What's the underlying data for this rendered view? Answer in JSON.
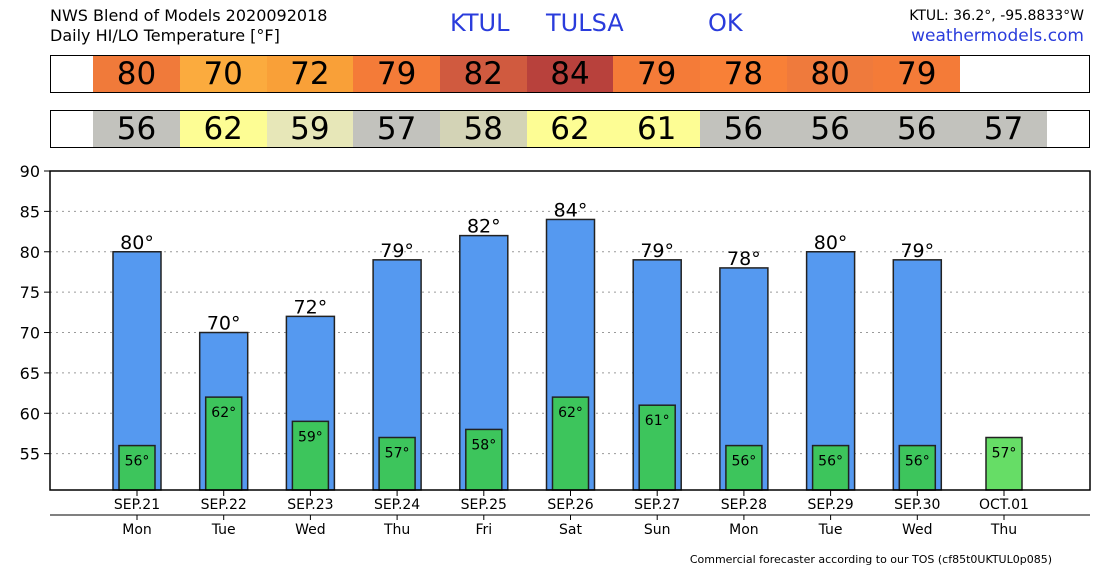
{
  "header": {
    "title_line1": "NWS Blend of Models 2020092018",
    "title_line2": "Daily HI/LO Temperature [°F]",
    "station_id": "KTUL",
    "station_city": "TULSA",
    "station_state": "OK",
    "coords": "KTUL: 36.2°, -95.8833°W",
    "site": "weathermodels.com"
  },
  "strips": {
    "hi": [
      {
        "value": "80",
        "color": "#f07a3a"
      },
      {
        "value": "70",
        "color": "#fbab3e"
      },
      {
        "value": "72",
        "color": "#f9a038"
      },
      {
        "value": "79",
        "color": "#f47b38"
      },
      {
        "value": "82",
        "color": "#d05a3f"
      },
      {
        "value": "84",
        "color": "#b8413c"
      },
      {
        "value": "79",
        "color": "#f47b38"
      },
      {
        "value": "78",
        "color": "#f88037"
      },
      {
        "value": "80",
        "color": "#ef7a3c"
      },
      {
        "value": "79",
        "color": "#f47b38"
      },
      {
        "value": "",
        "color": "#ffffff"
      }
    ],
    "lo": [
      {
        "value": "56",
        "color": "#c2c2bd"
      },
      {
        "value": "62",
        "color": "#fdfd94"
      },
      {
        "value": "59",
        "color": "#e7e7b8"
      },
      {
        "value": "57",
        "color": "#c2c2bd"
      },
      {
        "value": "58",
        "color": "#d3d3b6"
      },
      {
        "value": "62",
        "color": "#fdfd94"
      },
      {
        "value": "61",
        "color": "#fdfd94"
      },
      {
        "value": "56",
        "color": "#c2c2bd"
      },
      {
        "value": "56",
        "color": "#c2c2bd"
      },
      {
        "value": "56",
        "color": "#c2c2bd"
      },
      {
        "value": "57",
        "color": "#c2c2bd"
      }
    ]
  },
  "chart_data": {
    "type": "bar",
    "categories": [
      "SEP.21",
      "SEP.22",
      "SEP.23",
      "SEP.24",
      "SEP.25",
      "SEP.26",
      "SEP.27",
      "SEP.28",
      "SEP.29",
      "SEP.30",
      "OCT.01"
    ],
    "weekdays": [
      "Mon",
      "Tue",
      "Wed",
      "Thu",
      "Fri",
      "Sat",
      "Sun",
      "Mon",
      "Tue",
      "Wed",
      "Thu"
    ],
    "series": [
      {
        "values": [
          80,
          70,
          72,
          79,
          82,
          84,
          79,
          78,
          80,
          79,
          null
        ],
        "labels": [
          "80°",
          "70°",
          "72°",
          "79°",
          "82°",
          "84°",
          "79°",
          "78°",
          "80°",
          "79°",
          ""
        ],
        "color": "#5599f0"
      },
      {
        "values": [
          56,
          62,
          59,
          57,
          58,
          62,
          61,
          56,
          56,
          56,
          57
        ],
        "labels": [
          "56°",
          "62°",
          "59°",
          "57°",
          "58°",
          "62°",
          "61°",
          "56°",
          "56°",
          "56°",
          "57°"
        ],
        "color": "#3dc55c",
        "last_color": "#66dd66"
      }
    ],
    "ylim": [
      50.5,
      90
    ],
    "yticks": [
      55,
      60,
      65,
      70,
      75,
      80,
      85,
      90
    ],
    "grid": true
  },
  "footer": {
    "note": "Commercial forecaster according to our TOS (cf85t0UKTUL0p085)"
  }
}
